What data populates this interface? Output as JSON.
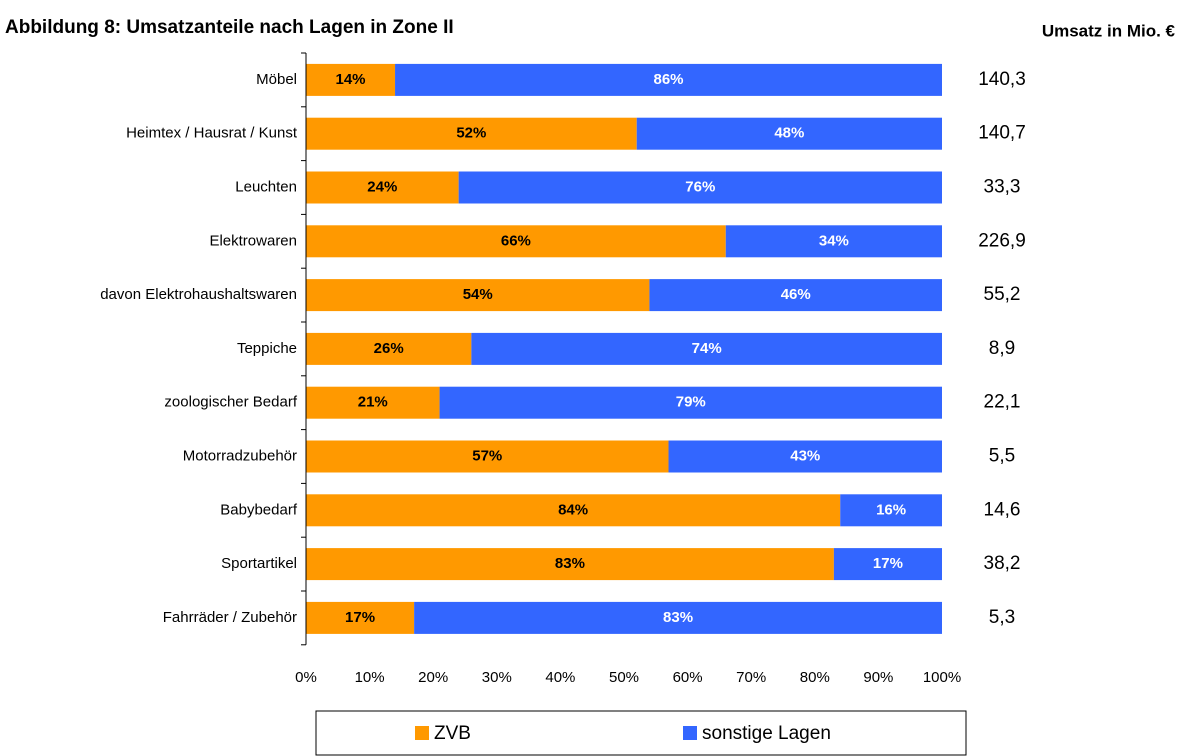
{
  "chart_data": {
    "type": "stacked_barh",
    "title": "Abbildung 8: Umsatzanteile nach Lagen in Zone II",
    "categories": [
      "Möbel",
      "Heimtex / Hausrat / Kunst",
      "Leuchten",
      "Elektrowaren",
      "davon Elektrohaushaltswaren",
      "Teppiche",
      "zoologischer Bedarf",
      "Motorradzubehör",
      "Babybedarf",
      "Sportartikel",
      "Fahrräder / Zubehör"
    ],
    "series": [
      {
        "name": "ZVB",
        "color": "#FF9900",
        "values": [
          14,
          52,
          24,
          66,
          54,
          26,
          21,
          57,
          84,
          83,
          17
        ],
        "value_labels": [
          "14%",
          "52%",
          "24%",
          "66%",
          "54%",
          "26%",
          "21%",
          "57%",
          "84%",
          "83%",
          "17%"
        ]
      },
      {
        "name": "sonstige Lagen",
        "color": "#3366FF",
        "values": [
          86,
          48,
          76,
          34,
          46,
          74,
          79,
          43,
          16,
          17,
          83
        ],
        "value_labels": [
          "86%",
          "48%",
          "76%",
          "34%",
          "46%",
          "74%",
          "79%",
          "43%",
          "16%",
          "17%",
          "83%"
        ]
      }
    ],
    "xlim": [
      0,
      100
    ],
    "xticks": [
      {
        "value": 0,
        "label": "0%"
      },
      {
        "value": 10,
        "label": "10%"
      },
      {
        "value": 20,
        "label": "20%"
      },
      {
        "value": 30,
        "label": "30%"
      },
      {
        "value": 40,
        "label": "40%"
      },
      {
        "value": 50,
        "label": "50%"
      },
      {
        "value": 60,
        "label": "60%"
      },
      {
        "value": 70,
        "label": "70%"
      },
      {
        "value": 80,
        "label": "80%"
      },
      {
        "value": 90,
        "label": "90%"
      },
      {
        "value": 100,
        "label": "100%"
      }
    ],
    "umsatz": {
      "title": "Umsatz in Mio. €",
      "values": [
        140.3,
        140.7,
        33.3,
        226.9,
        55.2,
        8.9,
        22.1,
        5.5,
        14.6,
        38.2,
        5.3
      ],
      "value_labels": [
        "140,3",
        "140,7",
        "33,3",
        "226,9",
        "55,2",
        "8,9",
        "22,1",
        "5,5",
        "14,6",
        "38,2",
        "5,3"
      ]
    }
  }
}
